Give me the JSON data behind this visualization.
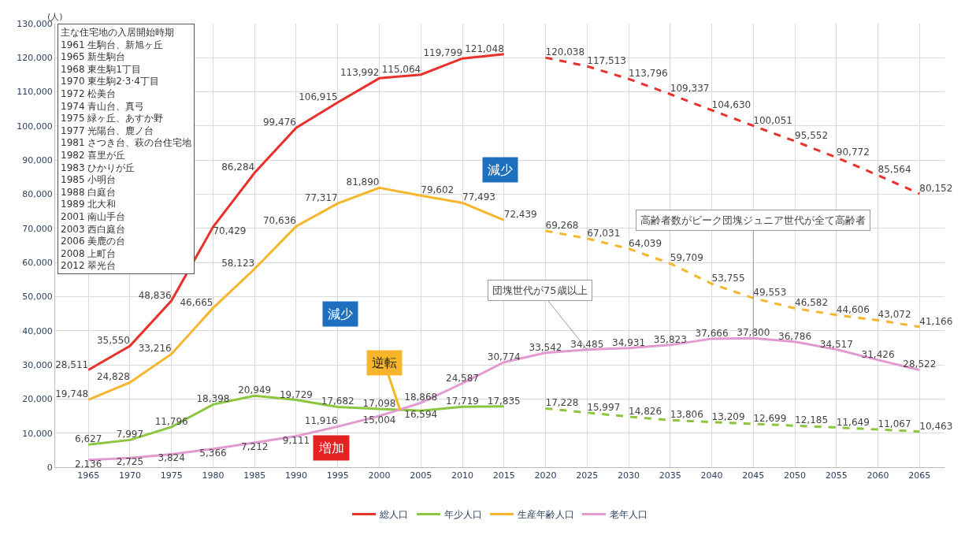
{
  "chart_data": {
    "type": "line",
    "ylabel": "(人)",
    "x": [
      1965,
      1970,
      1975,
      1980,
      1985,
      1990,
      1995,
      2000,
      2005,
      2010,
      2015,
      2020,
      2025,
      2030,
      2035,
      2040,
      2045,
      2050,
      2055,
      2060,
      2065
    ],
    "series": [
      {
        "name": "総人口",
        "color": "#e8312a",
        "x": [
          1965,
          1970,
          1975,
          1980,
          1985,
          1990,
          1995,
          2000,
          2005,
          2010,
          2015
        ],
        "values": [
          28511,
          35550,
          48836,
          70429,
          86284,
          99476,
          106915,
          113992,
          115064,
          119799,
          121048
        ],
        "value_labels": [
          "28,511",
          "35,550",
          "48,836",
          "70,429",
          "86,284",
          "99,476",
          "106,915",
          "113,992",
          "115,064",
          "119,799",
          "121,048"
        ],
        "line_style": "solid"
      },
      {
        "color": "#e8312a",
        "x": [
          2020,
          2025,
          2030,
          2035,
          2040,
          2045,
          2050,
          2055,
          2060,
          2065
        ],
        "values": [
          120038,
          117513,
          113796,
          109337,
          104630,
          100051,
          95552,
          90772,
          85564,
          80152
        ],
        "value_labels": [
          "120,038",
          "117,513",
          "113,796",
          "109,337",
          "104,630",
          "100,051",
          "95,552",
          "90,772",
          "85,564",
          "80,152"
        ],
        "line_style": "dashed"
      },
      {
        "name": "年少人口",
        "color": "#8cc63e",
        "x": [
          1965,
          1970,
          1975,
          1980,
          1985,
          1990,
          1995,
          2000,
          2005,
          2010,
          2015
        ],
        "values": [
          6627,
          7997,
          11796,
          18398,
          20949,
          19729,
          17682,
          17098,
          16594,
          17719,
          17835
        ],
        "value_labels": [
          "6,627",
          "7,997",
          "11,796",
          "18,398",
          "20,949",
          "19,729",
          "17,682",
          "17,098",
          "16,594",
          "17,719",
          "17,835"
        ],
        "line_style": "solid"
      },
      {
        "color": "#8cc63e",
        "x": [
          2020,
          2025,
          2030,
          2035,
          2040,
          2045,
          2050,
          2055,
          2060,
          2065
        ],
        "values": [
          17228,
          15997,
          14826,
          13806,
          13209,
          12699,
          12185,
          11649,
          11067,
          10463
        ],
        "value_labels": [
          "17,228",
          "15,997",
          "14,826",
          "13,806",
          "13,209",
          "12,699",
          "12,185",
          "11,649",
          "11,067",
          "10,463"
        ],
        "line_style": "dashed"
      },
      {
        "name": "生産年齢人口",
        "color": "#f7b52c",
        "x": [
          1965,
          1970,
          1975,
          1980,
          1985,
          1990,
          1995,
          2000,
          2005,
          2010,
          2015
        ],
        "values": [
          19748,
          24828,
          33216,
          46665,
          58123,
          70636,
          77317,
          81890,
          79602,
          77493,
          72439
        ],
        "value_labels": [
          "19,748",
          "24,828",
          "33,216",
          "46,665",
          "58,123",
          "70,636",
          "77,317",
          "81,890",
          "79,602",
          "77,493",
          "72,439"
        ],
        "line_style": "solid"
      },
      {
        "color": "#f7b52c",
        "x": [
          2020,
          2025,
          2030,
          2035,
          2040,
          2045,
          2050,
          2055,
          2060,
          2065
        ],
        "values": [
          69268,
          67031,
          64039,
          59709,
          53755,
          49553,
          46582,
          44606,
          43072,
          41166
        ],
        "value_labels": [
          "69,268",
          "67,031",
          "64,039",
          "59,709",
          "53,755",
          "49,553",
          "46,582",
          "44,606",
          "43,072",
          "41,166"
        ],
        "line_style": "dashed"
      },
      {
        "name": "老年人口",
        "color": "#e29ad0",
        "values": [
          2136,
          2725,
          3824,
          5366,
          7212,
          9111,
          11916,
          15004,
          18868,
          24587,
          30774,
          33542,
          34485,
          34931,
          35823,
          37666,
          37800,
          36786,
          34517,
          31426,
          28522
        ],
        "value_labels": [
          "2,136",
          "2,725",
          "3,824",
          "5,366",
          "7,212",
          "9,111",
          "11,916",
          "15,004",
          "18,868",
          "24,587",
          "30,774",
          "33,542",
          "34,485",
          "34,931",
          "35,823",
          "37,666",
          "37,800",
          "36,786",
          "34,517",
          "31,426",
          "28,522"
        ],
        "line_style": "solid"
      }
    ],
    "xlim": [
      1961,
      2068
    ],
    "xticks": [
      1965,
      1970,
      1975,
      1980,
      1985,
      1990,
      1995,
      2000,
      2005,
      2010,
      2015,
      2020,
      2025,
      2030,
      2035,
      2040,
      2045,
      2050,
      2055,
      2060,
      2065
    ],
    "ylim": [
      0,
      130000
    ],
    "yticks": [
      {
        "value": 0,
        "label": "0"
      },
      {
        "value": 10000,
        "label": "10,000"
      },
      {
        "value": 20000,
        "label": "20,000"
      },
      {
        "value": 30000,
        "label": "30,000"
      },
      {
        "value": 40000,
        "label": "40,000"
      },
      {
        "value": 50000,
        "label": "50,000"
      },
      {
        "value": 60000,
        "label": "60,000"
      },
      {
        "value": 70000,
        "label": "70,000"
      },
      {
        "value": 80000,
        "label": "80,000"
      },
      {
        "value": 90000,
        "label": "90,000"
      },
      {
        "value": 100000,
        "label": "100,000"
      },
      {
        "value": 110000,
        "label": "110,000"
      },
      {
        "value": 120000,
        "label": "120,000"
      },
      {
        "value": 130000,
        "label": "130,000"
      }
    ],
    "grid": true,
    "legend": "bottom",
    "annotations": [
      "主な住宅地の入居開始時期\n\n1961 生駒台、新旭ヶ丘\n1965 新生駒台\n1968 東生駒1丁目\n1970 東生駒2·3·4丁目\n1972 松美台\n1974 青山台、真弓\n1975 緑ヶ丘、あすか野\n1977 光陽台、鹿ノ台\n1981 さつき台、萩の台住宅地\n1982 喜里が丘\n1983 ひかりが丘\n1985 小明台\n1988 白庭台\n1989 北大和\n2001 南山手台\n2003 西白庭台\n2006 美鹿の台\n2008 上町台\n2012 翠光台",
      {
        "text": "逆転",
        "x": 2002.5,
        "y": 16800
      },
      {
        "text": "団塊世代が75歳以上",
        "x": 2025,
        "y": 34485
      },
      {
        "text": "高齢者数がピーク団塊ジュニア世代が全て高齢者",
        "x": 2045,
        "y": 37800
      },
      "減少",
      "減少",
      "増加"
    ]
  }
}
